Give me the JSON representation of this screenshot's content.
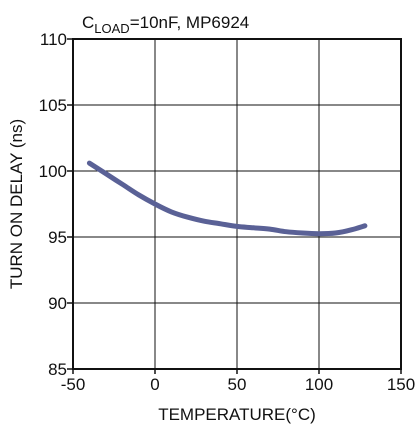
{
  "chart_data": {
    "type": "line",
    "title": {
      "prefix": "C",
      "subscript": "LOAD",
      "rest": "=10nF, MP6924"
    },
    "xlabel": "TEMPERATURE(°C)",
    "ylabel": "TURN ON DELAY (ns)",
    "xlim": [
      -50,
      150
    ],
    "ylim": [
      85,
      110
    ],
    "x_ticks": [
      -50,
      0,
      50,
      100,
      150
    ],
    "x_tick_labels": [
      "-50",
      "0",
      "50",
      "100",
      "150"
    ],
    "y_ticks": [
      85,
      90,
      95,
      100,
      105,
      110
    ],
    "y_tick_labels": [
      "85",
      "90",
      "95",
      "100",
      "105",
      "110"
    ],
    "grid": true,
    "colors": {
      "line": "#5a6196",
      "grid": "#111111"
    },
    "series": [
      {
        "x": [
          -40,
          -30,
          -20,
          -10,
          0,
          10,
          20,
          30,
          40,
          50,
          60,
          70,
          80,
          90,
          100,
          110,
          120,
          128
        ],
        "y": [
          100.6,
          99.8,
          99.0,
          98.2,
          97.5,
          96.9,
          96.5,
          96.2,
          96.0,
          95.8,
          95.7,
          95.6,
          95.4,
          95.3,
          95.25,
          95.3,
          95.55,
          95.85
        ]
      }
    ]
  }
}
